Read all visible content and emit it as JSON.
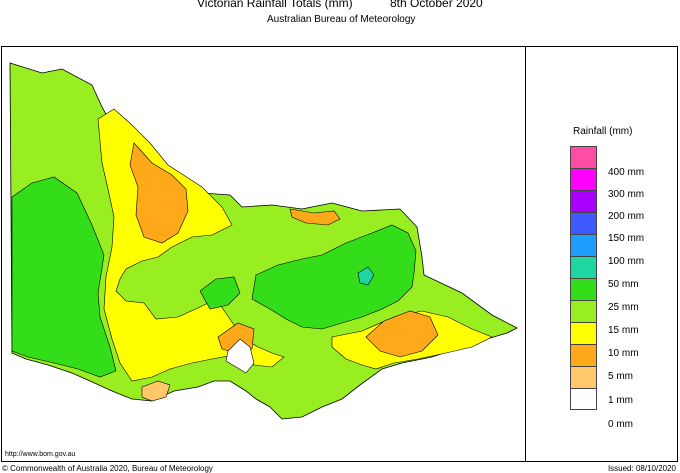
{
  "header": {
    "title": "Victorian Rainfall Totals (mm)",
    "date": "8th October 2020",
    "subtitle": "Australian Bureau of Meteorology"
  },
  "legend": {
    "title": "Rainfall (mm)",
    "classes": [
      {
        "label": "400 mm",
        "color": "#ff4da6"
      },
      {
        "label": "300 mm",
        "color": "#ff00ff"
      },
      {
        "label": "200 mm",
        "color": "#aa00ff"
      },
      {
        "label": "150 mm",
        "color": "#3f5bff"
      },
      {
        "label": "100 mm",
        "color": "#1e9fff"
      },
      {
        "label": "50 mm",
        "color": "#1ed6a0"
      },
      {
        "label": "25 mm",
        "color": "#33dd1a"
      },
      {
        "label": "15 mm",
        "color": "#99ee22"
      },
      {
        "label": "10 mm",
        "color": "#ffff00"
      },
      {
        "label": "5 mm",
        "color": "#ffa91a"
      },
      {
        "label": "1 mm",
        "color": "#ffc86b"
      },
      {
        "label": "0 mm",
        "color": "#ffffff"
      }
    ]
  },
  "footer": {
    "url": "http://www.bom.gov.au",
    "copyright": "© Commonwealth of Australia 2020, Bureau of Meteorology",
    "issued": "Issued: 08/10/2020"
  }
}
